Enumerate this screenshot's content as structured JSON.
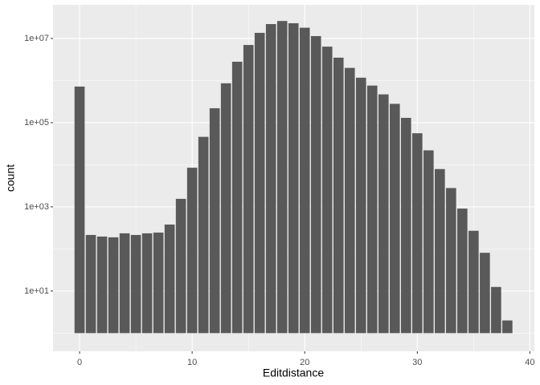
{
  "chart_data": {
    "type": "bar",
    "x_label": "Editdistance",
    "y_label": "count",
    "x": [
      0,
      1,
      2,
      3,
      4,
      5,
      6,
      7,
      8,
      9,
      10,
      11,
      12,
      13,
      14,
      15,
      16,
      17,
      18,
      19,
      20,
      21,
      22,
      23,
      24,
      25,
      26,
      27,
      28,
      29,
      30,
      31,
      32,
      33,
      34,
      35,
      36,
      37,
      38
    ],
    "values": [
      720000,
      215,
      197,
      189,
      235,
      215,
      235,
      245,
      380,
      1550,
      8500,
      46000,
      220000,
      860000,
      2800000,
      7000000,
      13600000,
      22000000,
      26000000,
      23000000,
      18000000,
      11400000,
      6400000,
      3500000,
      2000000,
      1170000,
      760000,
      470000,
      280000,
      130000,
      56000,
      22000,
      7900,
      2800,
      910,
      270,
      81,
      12.5,
      2
    ],
    "color": "#595959",
    "xlim": [
      -2.36,
      40.4
    ],
    "xticks": [
      0,
      10,
      20,
      30,
      40
    ],
    "ylim": [
      0.37,
      63000000
    ],
    "log_y": true,
    "yticks": [
      {
        "value": 10,
        "label": "1e+01"
      },
      {
        "value": 1000,
        "label": "1e+03"
      },
      {
        "value": 100000,
        "label": "1e+05"
      },
      {
        "value": 10000000,
        "label": "1e+07"
      }
    ],
    "grid": true
  }
}
